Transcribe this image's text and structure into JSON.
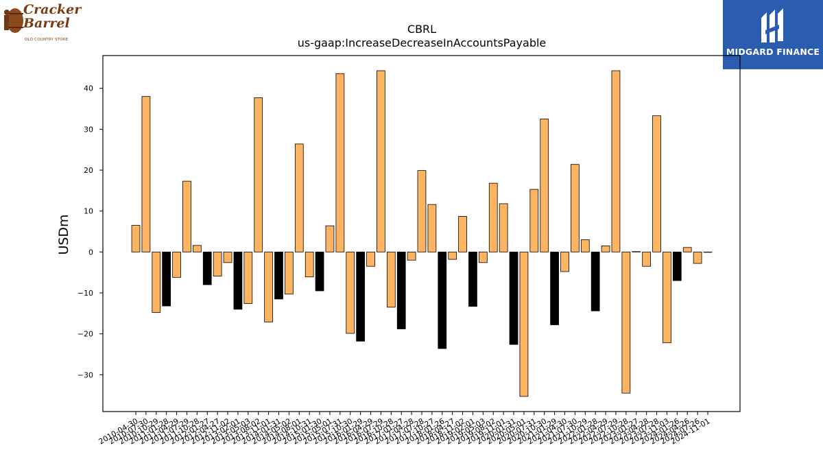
{
  "header": {
    "left_logo": {
      "name": "Cracker Barrel",
      "tagline": "OLD COUNTRY STORE",
      "icon": "barrel-icon"
    },
    "right_logo": {
      "name": "MIDGARD FINANCE",
      "icon": "midgard-logo-icon",
      "background": "#2a5db0"
    }
  },
  "chart_data": {
    "type": "bar",
    "title": "CBRL",
    "subtitle": "us-gaap:IncreaseDecreaseInAccountsPayable",
    "ylabel": "USDm",
    "xlabel": "",
    "ylim": [
      -39,
      48
    ],
    "yticks": [
      -30,
      -20,
      -10,
      0,
      10,
      20,
      30,
      40
    ],
    "grid": false,
    "colors": {
      "default": "#fdb462",
      "highlight": "#000000"
    },
    "categories": [
      "2010-04-30",
      "2010-07-30",
      "2010-10-29",
      "2011-01-28",
      "2011-04-29",
      "2011-07-29",
      "2011-10-28",
      "2012-01-27",
      "2012-04-27",
      "2012-11-02",
      "2013-02-01",
      "2013-05-03",
      "2013-08-02",
      "2013-11-01",
      "2014-01-31",
      "2014-05-02",
      "2014-08-01",
      "2014-10-31",
      "2015-01-30",
      "2015-05-01",
      "2015-07-31",
      "2015-10-30",
      "2016-01-29",
      "2016-04-29",
      "2016-07-29",
      "2016-10-28",
      "2017-01-27",
      "2017-04-28",
      "2017-07-28",
      "2017-10-27",
      "2018-01-26",
      "2018-04-27",
      "2018-11-02",
      "2019-02-01",
      "2019-05-03",
      "2019-08-02",
      "2019-11-01",
      "2020-01-31",
      "2020-05-01",
      "2020-07-31",
      "2020-10-30",
      "2021-01-29",
      "2021-04-30",
      "2021-07-30",
      "2021-10-29",
      "2022-01-28",
      "2022-04-29",
      "2022-07-29",
      "2022-10-28",
      "2023-01-27",
      "2023-04-28",
      "2023-07-28",
      "2023-11-03",
      "2024-01-26",
      "2024-04-26",
      "2024-07-26",
      "2024-11-01"
    ],
    "values": [
      6.5,
      38,
      -14.8,
      -13.2,
      -6.2,
      17.3,
      1.6,
      -8,
      -5.9,
      -2.6,
      -14,
      -12.6,
      37.7,
      -17.1,
      -11.5,
      -10.3,
      26.4,
      -6.1,
      -9.5,
      6.4,
      43.6,
      -19.9,
      -21.8,
      -3.5,
      44.3,
      -13.5,
      -18.8,
      -2,
      19.9,
      11.6,
      -23.6,
      -1.8,
      8.7,
      -13.3,
      -2.6,
      16.8,
      11.8,
      -22.6,
      -35.3,
      15.3,
      32.5,
      -17.8,
      -4.8,
      21.4,
      3,
      -14.4,
      1.5,
      44.3,
      -34.5,
      0.1,
      -3.5,
      33.3,
      -22.2,
      -7,
      1.1,
      -2.8,
      0
    ],
    "highlight": [
      false,
      false,
      false,
      true,
      false,
      false,
      false,
      true,
      false,
      false,
      true,
      false,
      false,
      false,
      true,
      false,
      false,
      false,
      true,
      false,
      false,
      false,
      true,
      false,
      false,
      false,
      true,
      false,
      false,
      false,
      true,
      false,
      false,
      true,
      false,
      false,
      false,
      true,
      false,
      false,
      false,
      true,
      false,
      false,
      false,
      true,
      false,
      false,
      false,
      true,
      false,
      false,
      false,
      true,
      false,
      false,
      false
    ]
  }
}
